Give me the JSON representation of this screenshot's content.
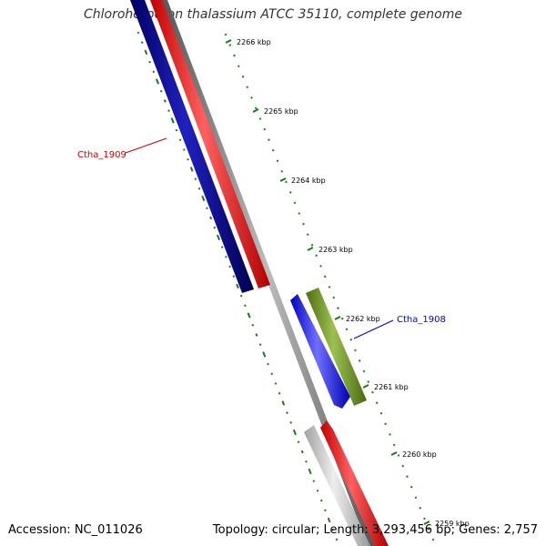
{
  "title": "Chloroherpeton thalassium ATCC 35110, complete genome",
  "accession": "Accession: NC_011026",
  "summary": "Topology: circular; Length: 3,293,456 bp; Genes: 2,757",
  "ticks": [
    "2266 kbp",
    "2265 kbp",
    "2264 kbp",
    "2263 kbp",
    "2262 kbp",
    "2261 kbp",
    "2260 kbp",
    "2259 kbp"
  ],
  "genes": [
    {
      "name": "Ctha_1909",
      "color": "#cc0000"
    },
    {
      "name": "Ctha_1908",
      "color": "#0000cc"
    }
  ],
  "colors": {
    "backbone": "#808080",
    "cds_forward_red": "#ff0000",
    "cds_reverse_navy": "#000080",
    "cds_blue": "#0000ff",
    "cds_olive": "#6b8e23",
    "cds_grey": "#c8c8c8",
    "gc_skew": "#1a7a1a"
  }
}
